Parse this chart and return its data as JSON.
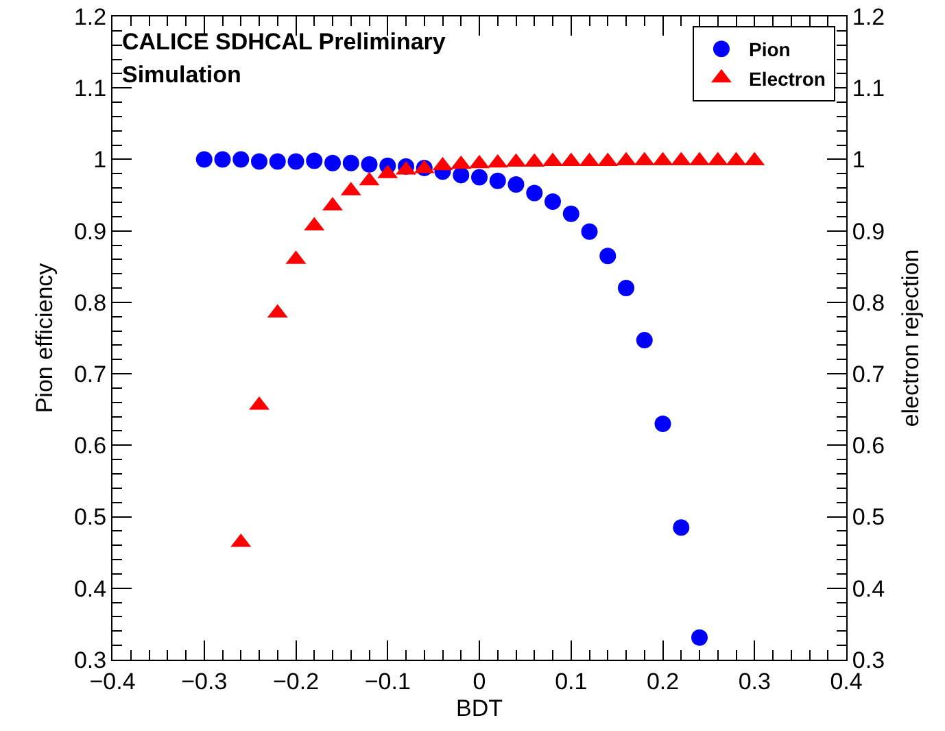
{
  "chart_data": {
    "type": "scatter",
    "xlabel": "BDT",
    "ylabel": "Pion efficiency",
    "y2label": "electron rejection",
    "annotations": [
      "CALICE SDHCAL Preliminary",
      "Simulation"
    ],
    "xlim": [
      -0.4,
      0.4
    ],
    "xticks": [
      -0.4,
      -0.3,
      -0.2,
      -0.1,
      0,
      0.1,
      0.2,
      0.3,
      0.4
    ],
    "ylim": [
      0.3,
      1.2
    ],
    "yticks": [
      0.3,
      0.4,
      0.5,
      0.6,
      0.7,
      0.8,
      0.9,
      1,
      1.1,
      1.2
    ],
    "y2lim": [
      0.3,
      1.2
    ],
    "y2ticks": [
      0.3,
      0.4,
      0.5,
      0.6,
      0.7,
      0.8,
      0.9,
      1,
      1.1,
      1.2
    ],
    "grid": false,
    "legend": "top right",
    "series": [
      {
        "name": "Pion",
        "color": "#0000ff",
        "marker": "circle",
        "x": [
          -0.3,
          -0.28,
          -0.26,
          -0.24,
          -0.22,
          -0.2,
          -0.18,
          -0.16,
          -0.14,
          -0.12,
          -0.1,
          -0.08,
          -0.06,
          -0.04,
          -0.02,
          0,
          0.02,
          0.04,
          0.06,
          0.08,
          0.1,
          0.12,
          0.14,
          0.16,
          0.18,
          0.2,
          0.22,
          0.24
        ],
        "values": [
          1,
          1,
          1,
          0.997,
          0.997,
          0.997,
          0.998,
          0.995,
          0.995,
          0.993,
          0.991,
          0.99,
          0.988,
          0.983,
          0.978,
          0.975,
          0.97,
          0.965,
          0.953,
          0.941,
          0.924,
          0.899,
          0.865,
          0.82,
          0.747,
          0.63,
          0.485,
          0.331
        ]
      },
      {
        "name": "Electron",
        "color": "#ff0000",
        "marker": "triangle",
        "axis": "y2",
        "x": [
          -0.26,
          -0.24,
          -0.22,
          -0.2,
          -0.18,
          -0.16,
          -0.14,
          -0.12,
          -0.1,
          -0.08,
          -0.06,
          -0.04,
          -0.02,
          0,
          0.02,
          0.04,
          0.06,
          0.08,
          0.1,
          0.12,
          0.14,
          0.16,
          0.18,
          0.2,
          0.22,
          0.24,
          0.26,
          0.28,
          0.3
        ],
        "values": [
          0.464,
          0.656,
          0.785,
          0.86,
          0.907,
          0.935,
          0.956,
          0.97,
          0.98,
          0.985,
          0.987,
          0.991,
          0.993,
          0.994,
          0.995,
          0.996,
          0.996,
          0.997,
          0.997,
          0.997,
          0.997,
          0.998,
          0.998,
          0.998,
          0.998,
          0.998,
          0.998,
          0.998,
          0.998
        ]
      }
    ]
  }
}
